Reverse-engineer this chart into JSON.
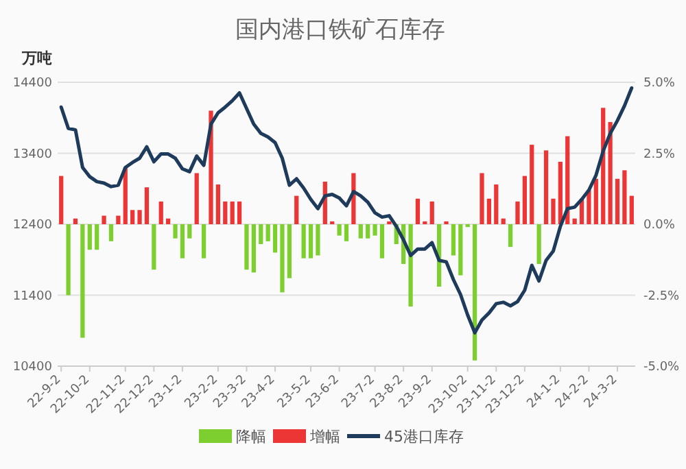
{
  "chart_data": {
    "type": "bar",
    "title": "国内港口铁矿石库存",
    "ylabel": "万吨",
    "categories": [
      "22-9-2",
      null,
      null,
      null,
      "22-10-2",
      null,
      null,
      null,
      null,
      "22-11-2",
      null,
      null,
      null,
      "22-12-2",
      null,
      null,
      null,
      "23-1-2",
      null,
      null,
      null,
      null,
      "23-2-2",
      null,
      null,
      null,
      "23-3-2",
      null,
      null,
      null,
      "23-4-2",
      null,
      null,
      null,
      null,
      "23-5-2",
      null,
      null,
      null,
      "23-6-2",
      null,
      null,
      null,
      null,
      "23-7-2",
      null,
      null,
      null,
      "23-8-2",
      null,
      null,
      null,
      "23-9-2",
      null,
      null,
      null,
      null,
      "23-10-2",
      null,
      null,
      null,
      "23-11-2",
      null,
      null,
      null,
      "23-12-2",
      null,
      null,
      null,
      null,
      "24-1-2",
      null,
      null,
      null,
      "24-2-2",
      null,
      null,
      null,
      "24-3-2",
      null,
      null
    ],
    "series": [
      {
        "name": "降幅",
        "axis": "y2",
        "color": "#7ccf2e",
        "values": [
          null,
          -2.5,
          null,
          -4.0,
          -0.9,
          -0.9,
          null,
          -0.6,
          null,
          null,
          null,
          null,
          null,
          -1.6,
          null,
          null,
          -0.5,
          -1.2,
          -0.5,
          null,
          -1.2,
          null,
          null,
          null,
          null,
          null,
          -1.6,
          -1.7,
          -0.7,
          -0.6,
          -1.0,
          -2.4,
          -1.9,
          null,
          -1.2,
          -1.2,
          -1.1,
          null,
          null,
          -0.4,
          -0.6,
          null,
          -0.5,
          -0.5,
          -0.4,
          -1.2,
          null,
          -0.7,
          -1.4,
          -2.9,
          null,
          null,
          null,
          -2.2,
          null,
          -1.1,
          -1.8,
          -0.1,
          -4.8,
          null,
          null,
          null,
          null,
          -0.8,
          null,
          null,
          null,
          -1.4,
          null,
          null,
          null,
          null,
          null,
          null,
          null,
          null,
          null,
          null,
          null,
          null,
          null
        ]
      },
      {
        "name": "增幅",
        "axis": "y2",
        "color": "#ec3535",
        "values": [
          1.7,
          null,
          0.2,
          null,
          null,
          null,
          0.3,
          null,
          0.3,
          2.0,
          0.5,
          0.5,
          1.3,
          null,
          0.8,
          0.2,
          null,
          null,
          null,
          1.8,
          null,
          4.0,
          1.4,
          0.8,
          0.8,
          0.8,
          null,
          null,
          null,
          null,
          null,
          null,
          null,
          1.0,
          null,
          null,
          null,
          1.5,
          0.1,
          null,
          null,
          1.8,
          null,
          null,
          null,
          null,
          0.1,
          null,
          null,
          null,
          0.9,
          0.1,
          0.8,
          null,
          0.1,
          null,
          null,
          null,
          null,
          1.8,
          0.9,
          1.4,
          0.2,
          null,
          0.8,
          1.7,
          2.8,
          null,
          2.6,
          0.9,
          2.2,
          3.1,
          0.2,
          0.9,
          1.2,
          1.6,
          4.1,
          3.6,
          1.6,
          1.9,
          1.0
        ]
      },
      {
        "name": "45港口库存",
        "type": "line",
        "axis": "y",
        "color": "#1f3b5c",
        "values": [
          14050,
          13750,
          13730,
          13200,
          13070,
          13000,
          12980,
          12930,
          12950,
          13200,
          13270,
          13330,
          13490,
          13280,
          13390,
          13390,
          13330,
          13180,
          13140,
          13360,
          13230,
          13810,
          13970,
          14050,
          14140,
          14250,
          14030,
          13810,
          13680,
          13630,
          13550,
          13330,
          12950,
          13040,
          12910,
          12750,
          12620,
          12800,
          12820,
          12770,
          12660,
          12860,
          12800,
          12710,
          12560,
          12500,
          12520,
          12370,
          12180,
          11960,
          12050,
          12050,
          12140,
          11890,
          11870,
          11620,
          11410,
          11120,
          10870,
          11050,
          11150,
          11280,
          11300,
          11250,
          11310,
          11470,
          11820,
          11600,
          11890,
          12020,
          12370,
          12620,
          12640,
          12750,
          12880,
          13090,
          13430,
          13680,
          13860,
          14070,
          14320
        ]
      }
    ],
    "ylim": [
      10400,
      14400
    ],
    "yticks": [
      10400,
      11400,
      12400,
      13400,
      14400
    ],
    "y2lim": [
      -5,
      5
    ],
    "y2ticks": [
      {
        "value": -5,
        "label": "-5.0%"
      },
      {
        "value": -2.5,
        "label": "-2.5%"
      },
      {
        "value": 0,
        "label": "0.0%"
      },
      {
        "value": 2.5,
        "label": "2.5%"
      },
      {
        "value": 5,
        "label": "5.0%"
      }
    ],
    "grid": "y",
    "legend": "bottom"
  }
}
